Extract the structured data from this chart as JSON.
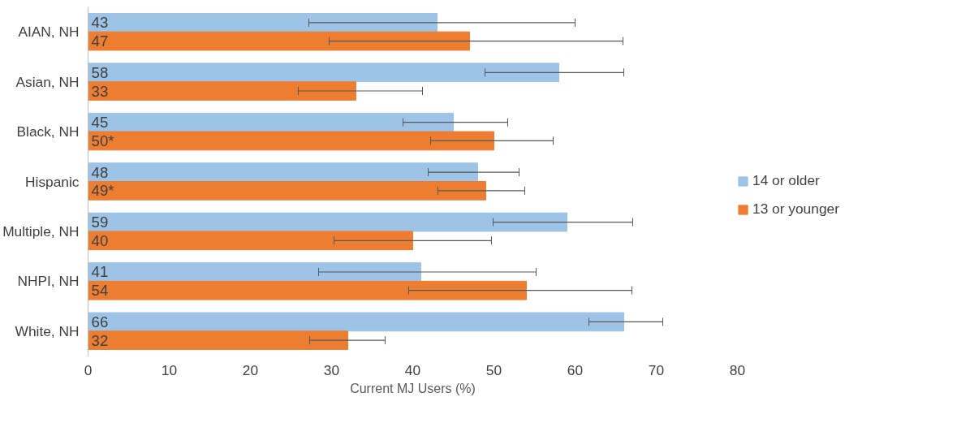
{
  "chart_data": {
    "type": "bar",
    "orientation": "horizontal",
    "xlabel": "Current MJ Users (%)",
    "categories": [
      "AIAN, NH",
      "Asian, NH",
      "Black, NH",
      "Hispanic",
      "Multiple, NH",
      "NHPI, NH",
      "White, NH"
    ],
    "series": [
      {
        "name": "14 or older",
        "color": "#9dc3e6",
        "values": [
          43,
          58,
          45,
          48,
          59,
          41,
          66
        ],
        "value_labels": [
          "43",
          "58",
          "45",
          "48",
          "59",
          "41",
          "66"
        ],
        "errors": [
          [
            27.2,
            60.0
          ],
          [
            48.9,
            66.0
          ],
          [
            38.8,
            51.7
          ],
          [
            41.9,
            53.1
          ],
          [
            49.9,
            67.1
          ],
          [
            28.4,
            55.2
          ],
          [
            61.7,
            70.8
          ]
        ]
      },
      {
        "name": "13 or younger",
        "color": "#ed7d31",
        "values": [
          47,
          33,
          50,
          49,
          40,
          54,
          32
        ],
        "value_labels": [
          "47",
          "33",
          "50*",
          "49*",
          "40",
          "54",
          "32"
        ],
        "errors": [
          [
            29.7,
            65.9
          ],
          [
            25.9,
            41.2
          ],
          [
            42.2,
            57.3
          ],
          [
            43.1,
            53.8
          ],
          [
            30.3,
            49.7
          ],
          [
            39.5,
            67.0
          ],
          [
            27.3,
            36.6
          ]
        ]
      }
    ],
    "xlim": [
      0,
      80
    ],
    "xticks": [
      0,
      10,
      20,
      30,
      40,
      50,
      60,
      70,
      80
    ],
    "grid": false,
    "legend": "right"
  }
}
